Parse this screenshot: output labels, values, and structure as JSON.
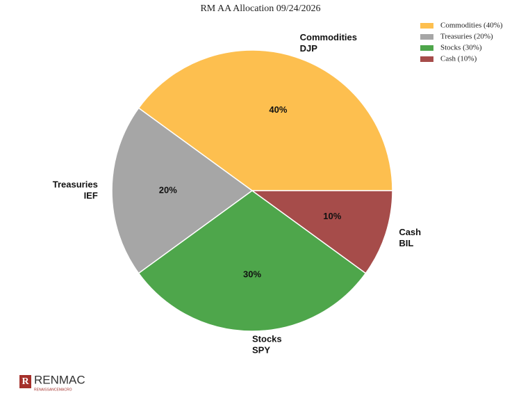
{
  "chart_data": {
    "type": "pie",
    "title": "RM AA Allocation 09/24/2026",
    "categories": [
      "Commodities",
      "Treasuries",
      "Stocks",
      "Cash"
    ],
    "tickers": [
      "DJP",
      "IEF",
      "SPY",
      "BIL"
    ],
    "values": [
      40,
      20,
      30,
      10
    ],
    "value_labels": [
      "40%",
      "20%",
      "30%",
      "10%"
    ],
    "colors": [
      "#fdbf4f",
      "#a6a6a6",
      "#4ea64b",
      "#a64c4a"
    ],
    "legend_labels": [
      "Commodities (40%)",
      "Treasuries (20%)",
      "Stocks (30%)",
      "Cash (10%)"
    ],
    "legend_position": "upper right"
  },
  "logo": {
    "name": "RENMAC",
    "subtitle": "RENAISSANCEMACRO"
  }
}
